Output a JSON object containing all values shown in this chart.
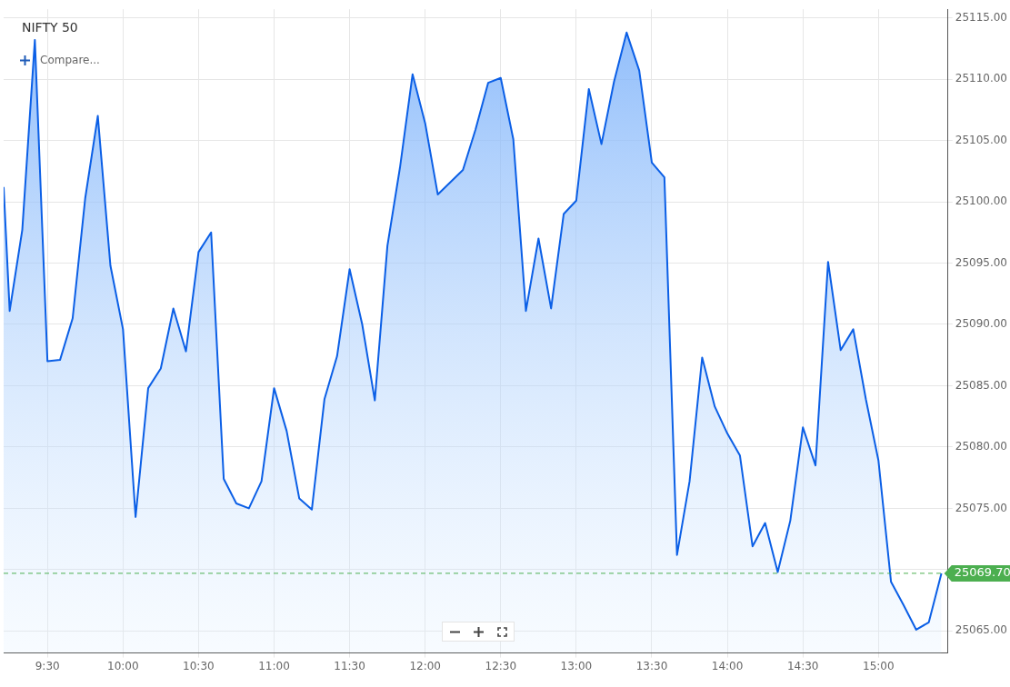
{
  "chart_data": {
    "type": "area",
    "title": "NIFTY 50",
    "annotations": [
      "Compare..."
    ],
    "x": [
      9.21,
      9.25,
      9.3333,
      9.4167,
      9.5,
      9.5833,
      9.6667,
      9.75,
      9.8333,
      9.9167,
      10,
      10.0833,
      10.1667,
      10.25,
      10.3333,
      10.4167,
      10.5,
      10.5833,
      10.6667,
      10.75,
      10.8333,
      10.9167,
      11,
      11.0833,
      11.1667,
      11.25,
      11.3333,
      11.4167,
      11.5,
      11.5833,
      11.6667,
      11.75,
      11.8333,
      11.9167,
      12,
      12.0833,
      12.1667,
      12.25,
      12.3333,
      12.4167,
      12.5,
      12.5833,
      12.6667,
      12.75,
      12.8333,
      12.9167,
      13,
      13.0833,
      13.1667,
      13.25,
      13.3333,
      13.4167,
      13.5,
      13.5833,
      13.6667,
      13.75,
      13.8333,
      13.9167,
      14,
      14.0833,
      14.1667,
      14.25,
      14.3333,
      14.4167,
      14.5,
      14.5833,
      14.6667,
      14.75,
      14.8333,
      14.9167,
      15,
      15.0833,
      15.1667,
      15.25,
      15.3333,
      15.4167
    ],
    "series": [
      {
        "color": "#0b5fe6",
        "values": [
          25101.2,
          25091.1,
          25097.7,
          25113.2,
          25087.0,
          25087.1,
          25090.5,
          25100.3,
          25107.0,
          25094.8,
          25089.6,
          25074.3,
          25084.8,
          25086.4,
          25091.3,
          25087.8,
          25095.9,
          25097.5,
          25077.4,
          25075.4,
          25075.0,
          25077.2,
          25084.8,
          25081.3,
          25075.8,
          25074.9,
          25083.9,
          25087.4,
          25094.5,
          25090.0,
          25083.8,
          25096.4,
          25102.8,
          25110.4,
          25106.4,
          25100.6,
          25101.6,
          25102.6,
          25105.9,
          25109.7,
          25110.1,
          25105.1,
          25091.1,
          25097.0,
          25091.3,
          25099.0,
          25100.1,
          25109.2,
          25104.7,
          25109.8,
          25113.8,
          25110.7,
          25103.2,
          25102.0,
          25071.2,
          25077.2,
          25087.3,
          25083.3,
          25081.1,
          25079.3,
          25071.9,
          25073.8,
          25069.8,
          25074.0,
          25081.6,
          25078.5,
          25095.1,
          25087.9,
          25089.6,
          25083.9,
          25078.9,
          25069.0,
          25067.1,
          25065.1,
          25065.7,
          25069.7
        ]
      }
    ],
    "xlim": [
      9.21,
      15.46
    ],
    "xticks": [
      {
        "value": 9.5,
        "label": "9:30"
      },
      {
        "value": 10,
        "label": "10:00"
      },
      {
        "value": 10.5,
        "label": "10:30"
      },
      {
        "value": 11,
        "label": "11:00"
      },
      {
        "value": 11.5,
        "label": "11:30"
      },
      {
        "value": 12,
        "label": "12:00"
      },
      {
        "value": 12.5,
        "label": "12:30"
      },
      {
        "value": 13,
        "label": "13:00"
      },
      {
        "value": 13.5,
        "label": "13:30"
      },
      {
        "value": 14,
        "label": "14:00"
      },
      {
        "value": 14.5,
        "label": "14:30"
      },
      {
        "value": 15,
        "label": "15:00"
      }
    ],
    "ylim": [
      25063.2,
      25115.7
    ],
    "yticks": [
      {
        "value": 25065,
        "label": "25065.00"
      },
      {
        "value": 25070,
        "label": null
      },
      {
        "value": 25075,
        "label": "25075.00"
      },
      {
        "value": 25080,
        "label": "25080.00"
      },
      {
        "value": 25085,
        "label": "25085.00"
      },
      {
        "value": 25090,
        "label": "25090.00"
      },
      {
        "value": 25095,
        "label": "25095.00"
      },
      {
        "value": 25100,
        "label": "25100.00"
      },
      {
        "value": 25105,
        "label": "25105.00"
      },
      {
        "value": 25110,
        "label": "25110.00"
      },
      {
        "value": 25115,
        "label": "25115.00"
      }
    ],
    "ref_lines": [
      {
        "axis": "y",
        "value": 25069.7,
        "label": "25069.70",
        "color": "#4caf50",
        "line_style": "dashed"
      }
    ],
    "grid": true,
    "legend": false,
    "marker": "none",
    "line_style": "solid"
  }
}
